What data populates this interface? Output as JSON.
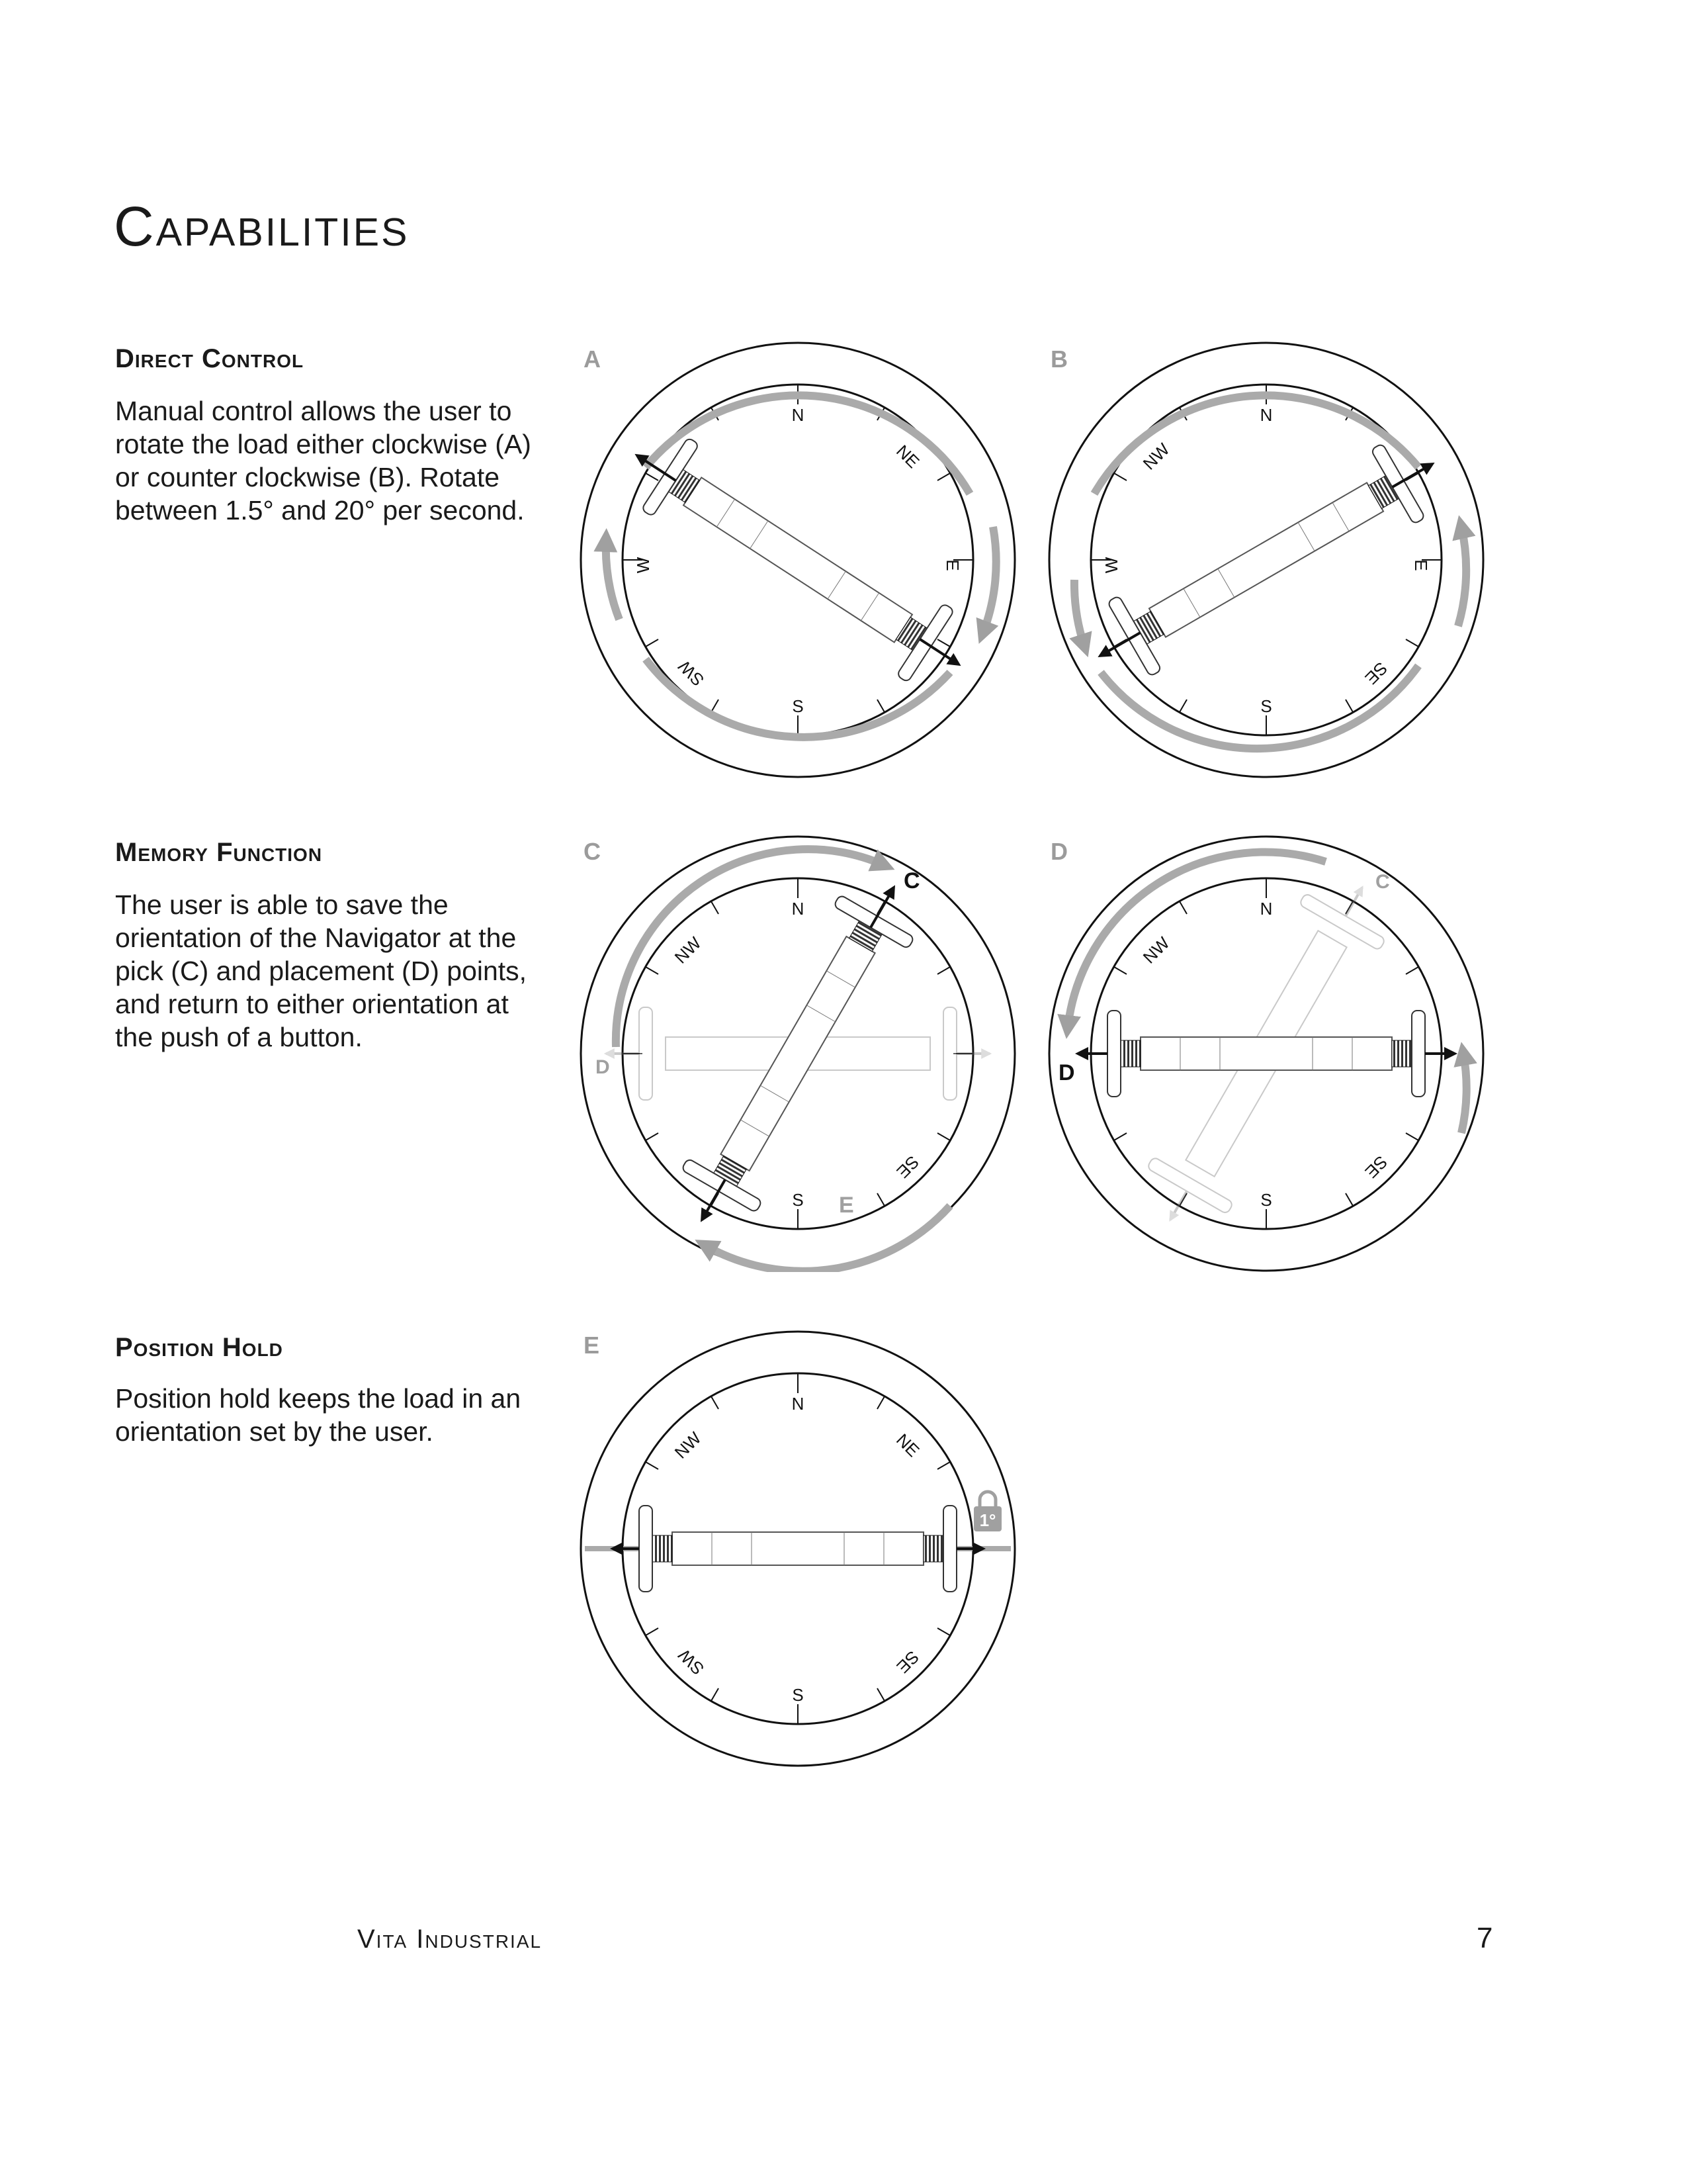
{
  "page": {
    "title": "Capabilities"
  },
  "sections": [
    {
      "heading": "Direct Control",
      "body": "Manual control allows the user to rotate the load either clockwise (A) or counter clockwise (B). Rotate between 1.5° and 20° per second."
    },
    {
      "heading": "Memory Function",
      "body": "The user is able to save the orientation of the Navigator at the pick (C) and placement (D) points, and return to either orientation at the push of a button."
    },
    {
      "heading": "Position Hold",
      "body": "Position hold keeps the load in an orientation set by the user."
    }
  ],
  "diagrams": {
    "a": {
      "letter": "A",
      "labels": [
        "N",
        "NE",
        "E",
        "S",
        "SW",
        "W"
      ]
    },
    "b": {
      "letter": "B",
      "labels": [
        "N",
        "NW",
        "E",
        "SE",
        "S",
        "W"
      ]
    },
    "c": {
      "letter": "C",
      "labels": [
        "N",
        "NW",
        "SE",
        "S"
      ],
      "pick_label": "C",
      "place_label": "D",
      "hold_label": "E"
    },
    "d": {
      "letter": "D",
      "labels": [
        "N",
        "NW",
        "SE",
        "S"
      ],
      "pick_label": "C",
      "place_label": "D"
    },
    "e": {
      "letter": "E",
      "labels": [
        "N",
        "NW",
        "NE",
        "SW",
        "SE",
        "S"
      ],
      "lock_label": "1°"
    }
  },
  "footer": {
    "brand": "Vita Industrial",
    "page_number": "7"
  },
  "colors": {
    "ink": "#1a1a1a",
    "gray": "#a0a0a0",
    "light": "#c8c8c8"
  }
}
